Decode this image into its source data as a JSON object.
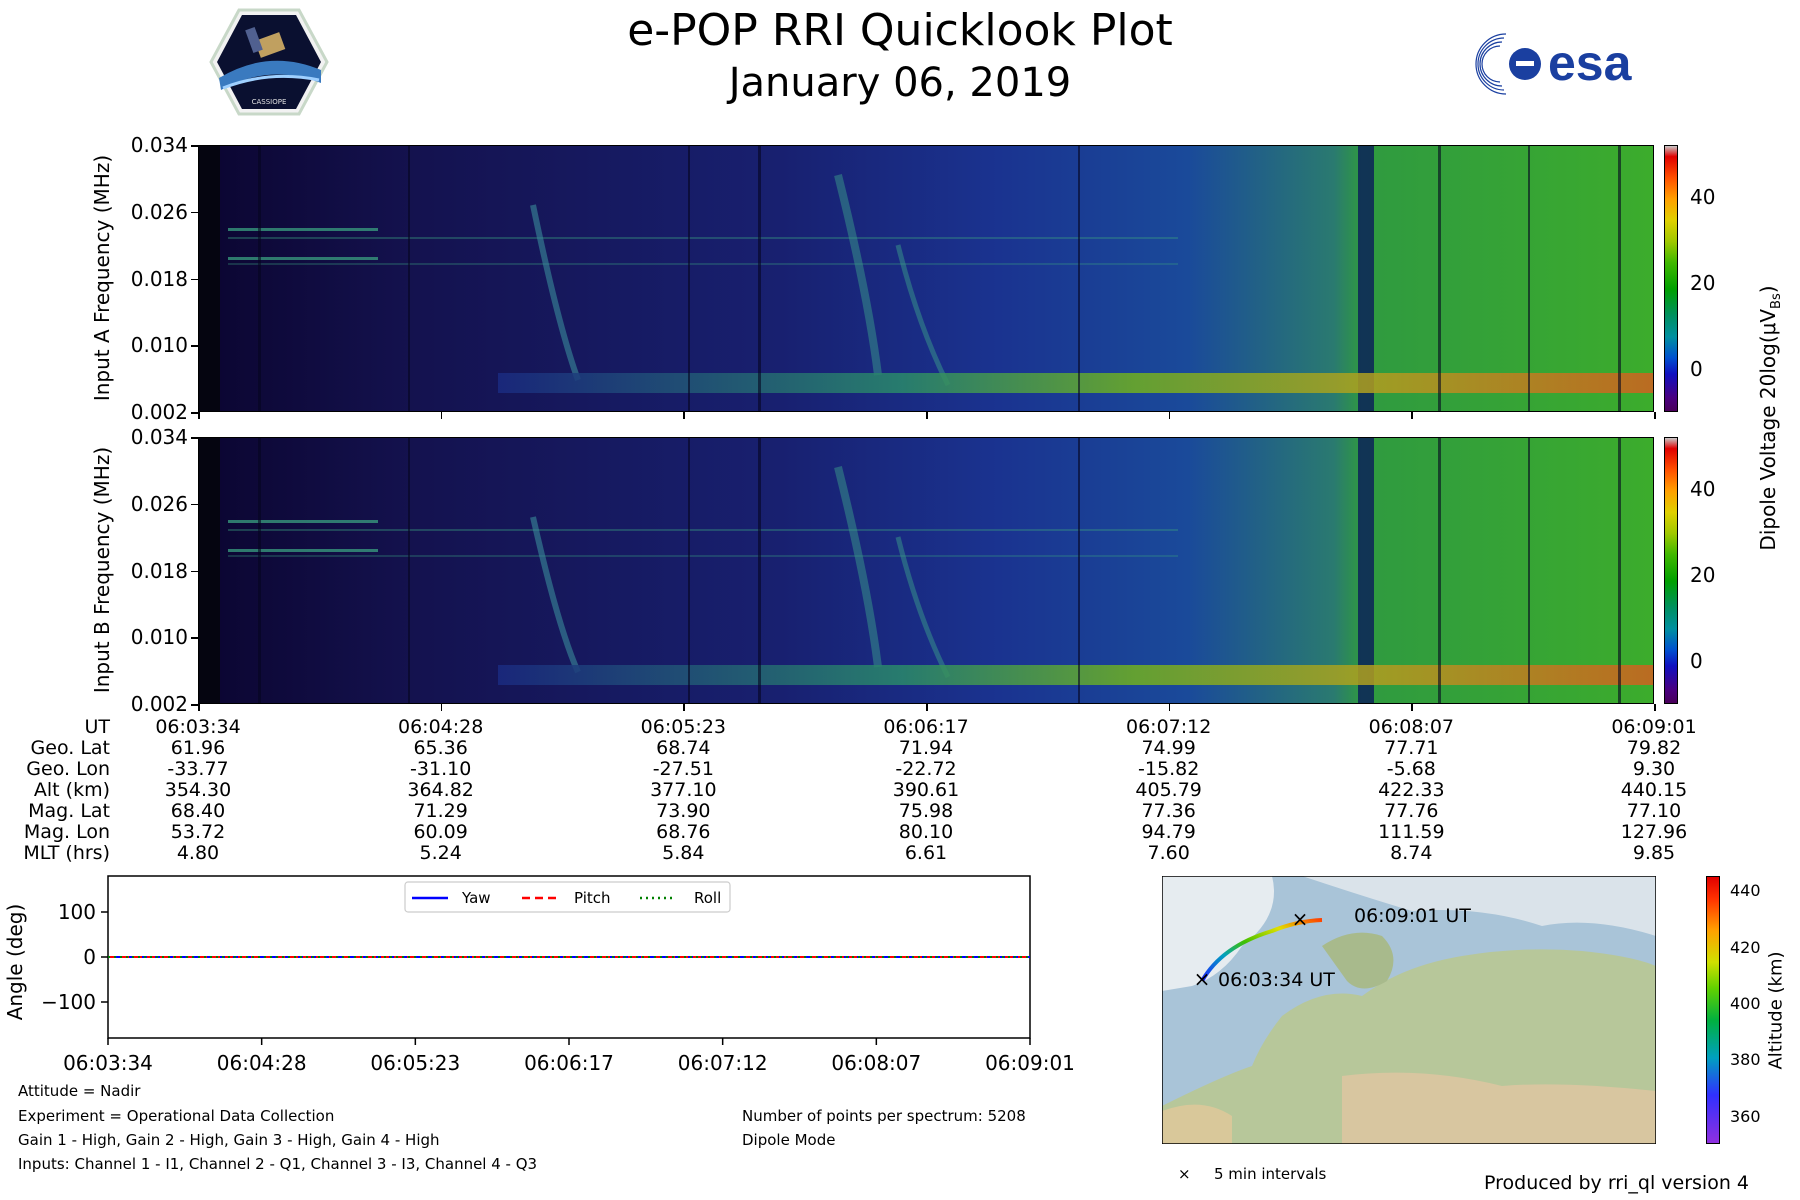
{
  "header": {
    "title": "e-POP RRI Quicklook Plot",
    "date": "January 06, 2019",
    "left_logo_text": "CASSIOPE",
    "right_logo_text": "esa"
  },
  "chart_data": [
    {
      "type": "heatmap",
      "name": "Input A spectrogram",
      "ylabel": "Input A Frequency (MHz)",
      "yticks": [
        "0.002",
        "0.010",
        "0.018",
        "0.026",
        "0.034"
      ],
      "ylim": [
        0.002,
        0.034
      ],
      "x": [
        "06:03:34",
        "06:04:28",
        "06:05:23",
        "06:06:17",
        "06:07:12",
        "06:08:07",
        "06:09:01"
      ]
    },
    {
      "type": "heatmap",
      "name": "Input B spectrogram",
      "ylabel": "Input B Frequency (MHz)",
      "yticks": [
        "0.002",
        "0.010",
        "0.018",
        "0.026",
        "0.034"
      ],
      "ylim": [
        0.002,
        0.034
      ],
      "x": [
        "06:03:34",
        "06:04:28",
        "06:05:23",
        "06:06:17",
        "06:07:12",
        "06:08:07",
        "06:09:01"
      ]
    },
    {
      "type": "line",
      "name": "Attitude",
      "ylabel": "Angle (deg)",
      "ylim": [
        -180,
        180
      ],
      "yticks": [
        "100",
        "0",
        "−100"
      ],
      "x": [
        "06:03:34",
        "06:04:28",
        "06:05:23",
        "06:06:17",
        "06:07:12",
        "06:08:07",
        "06:09:01"
      ],
      "series": [
        {
          "name": "Yaw",
          "values": [
            0,
            0,
            0,
            0,
            0,
            0,
            0
          ],
          "color": "#0000ff",
          "style": "solid"
        },
        {
          "name": "Pitch",
          "values": [
            0,
            0,
            0,
            0,
            0,
            0,
            0
          ],
          "color": "#ff0000",
          "style": "dashed"
        },
        {
          "name": "Roll",
          "values": [
            0,
            0,
            0,
            0,
            0,
            0,
            0
          ],
          "color": "#008000",
          "style": "dotted"
        }
      ]
    }
  ],
  "colorbar_voltage": {
    "label": "Dipole Voltage 20log(μV",
    "label_sub": "Bs",
    "label_end": ")",
    "ticks": [
      "40",
      "20",
      "0"
    ],
    "range": [
      -10,
      52
    ]
  },
  "colorbar_altitude": {
    "label": "Altitude (km)",
    "ticks": [
      "440",
      "420",
      "400",
      "380",
      "360"
    ],
    "range": [
      350,
      445
    ]
  },
  "ephemeris": {
    "labels": [
      "UT",
      "Geo. Lat",
      "Geo. Lon",
      "Alt (km)",
      "Mag. Lat",
      "Mag. Lon",
      "MLT (hrs)"
    ],
    "columns": [
      [
        "06:03:34",
        "61.96",
        "-33.77",
        "354.30",
        "68.40",
        "53.72",
        "4.80"
      ],
      [
        "06:04:28",
        "65.36",
        "-31.10",
        "364.82",
        "71.29",
        "60.09",
        "5.24"
      ],
      [
        "06:05:23",
        "68.74",
        "-27.51",
        "377.10",
        "73.90",
        "68.76",
        "5.84"
      ],
      [
        "06:06:17",
        "71.94",
        "-22.72",
        "390.61",
        "75.98",
        "80.10",
        "6.61"
      ],
      [
        "06:07:12",
        "74.99",
        "-15.82",
        "405.79",
        "77.36",
        "94.79",
        "7.60"
      ],
      [
        "06:08:07",
        "77.71",
        "-5.68",
        "422.33",
        "77.76",
        "111.59",
        "8.74"
      ],
      [
        "06:09:01",
        "79.82",
        "9.30",
        "440.15",
        "77.10",
        "127.96",
        "9.85"
      ]
    ]
  },
  "map": {
    "start_label": "06:03:34 UT",
    "end_label": "06:09:01 UT",
    "legend": "5 min intervals"
  },
  "notes": {
    "attitude": "Attitude = Nadir",
    "experiment": "Experiment = Operational Data Collection",
    "gains": "Gain 1 - High, Gain 2 - High, Gain 3 - High, Gain 4 - High",
    "inputs": "Inputs: Channel 1 - I1, Channel 2 - Q1, Channel 3 - I3, Channel 4 - Q3",
    "points": "Number of points per spectrum: 5208",
    "mode": "Dipole Mode",
    "produced": "Produced by rri_ql version 4"
  }
}
